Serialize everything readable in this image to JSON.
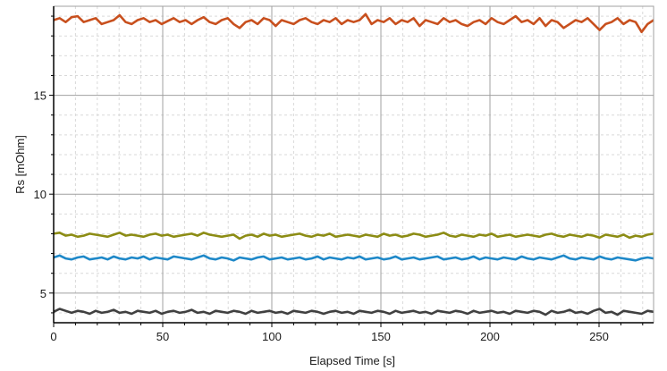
{
  "chart_data": {
    "type": "line",
    "xlabel": "Elapsed Time [s]",
    "ylabel": "Rs [mOhm]",
    "xlim": [
      0,
      275
    ],
    "ylim": [
      3.5,
      19.5
    ],
    "x_major_ticks": [
      0,
      50,
      100,
      150,
      200,
      250
    ],
    "x_minor_step": 10,
    "y_major_ticks": [
      5,
      10,
      15
    ],
    "y_minor_step": 1,
    "grid": true,
    "legend": "none",
    "series": [
      {
        "color": "#c8501e",
        "level": 18.7,
        "noise": 0.18,
        "values": [
          18.8,
          18.9,
          18.7,
          18.95,
          19.0,
          18.7,
          18.8,
          18.9,
          18.6,
          18.7,
          18.8,
          19.05,
          18.7,
          18.6,
          18.8,
          18.9,
          18.7,
          18.8,
          18.6,
          18.75,
          18.9,
          18.7,
          18.8,
          18.6,
          18.8,
          18.95,
          18.7,
          18.6,
          18.8,
          18.9,
          18.6,
          18.4,
          18.7,
          18.8,
          18.6,
          18.9,
          18.8,
          18.5,
          18.8,
          18.7,
          18.6,
          18.8,
          18.9,
          18.7,
          18.6,
          18.8,
          18.7,
          18.9,
          18.6,
          18.8,
          18.7,
          18.8,
          19.1,
          18.6,
          18.8,
          18.7,
          18.9,
          18.6,
          18.8,
          18.7,
          18.9,
          18.5,
          18.8,
          18.7,
          18.6,
          18.9,
          18.7,
          18.8,
          18.6,
          18.5,
          18.7,
          18.8,
          18.6,
          18.9,
          18.7,
          18.6,
          18.8,
          19.0,
          18.7,
          18.8,
          18.6,
          18.9,
          18.5,
          18.8,
          18.7,
          18.4,
          18.6,
          18.8,
          18.7,
          18.9,
          18.6,
          18.3,
          18.6,
          18.7,
          18.9,
          18.6,
          18.8,
          18.7,
          18.2,
          18.6,
          18.8
        ]
      },
      {
        "color": "#8c8c14",
        "level": 7.9,
        "noise": 0.08,
        "values": [
          8.0,
          8.05,
          7.9,
          7.95,
          7.85,
          7.9,
          8.0,
          7.95,
          7.9,
          7.85,
          7.95,
          8.05,
          7.9,
          7.95,
          7.9,
          7.85,
          7.95,
          8.0,
          7.9,
          7.95,
          7.85,
          7.9,
          7.95,
          8.0,
          7.9,
          8.05,
          7.95,
          7.9,
          7.85,
          7.9,
          7.95,
          7.75,
          7.9,
          7.95,
          7.85,
          8.0,
          7.9,
          7.95,
          7.85,
          7.9,
          7.95,
          8.0,
          7.9,
          7.85,
          7.95,
          7.9,
          8.0,
          7.85,
          7.9,
          7.95,
          7.9,
          7.85,
          7.95,
          7.9,
          7.85,
          8.0,
          7.9,
          7.95,
          7.85,
          7.9,
          8.0,
          7.95,
          7.85,
          7.9,
          7.95,
          8.05,
          7.9,
          7.85,
          7.95,
          7.9,
          7.85,
          7.95,
          7.9,
          8.0,
          7.85,
          7.9,
          7.95,
          7.85,
          7.9,
          7.95,
          7.9,
          7.85,
          7.95,
          8.0,
          7.9,
          7.85,
          7.95,
          7.9,
          7.85,
          7.95,
          7.9,
          7.8,
          7.95,
          7.9,
          7.85,
          7.95,
          7.8,
          7.9,
          7.85,
          7.95,
          8.0
        ]
      },
      {
        "color": "#1e88c8",
        "level": 6.75,
        "noise": 0.08,
        "values": [
          6.8,
          6.9,
          6.75,
          6.7,
          6.8,
          6.85,
          6.7,
          6.75,
          6.8,
          6.7,
          6.85,
          6.75,
          6.7,
          6.8,
          6.75,
          6.85,
          6.7,
          6.8,
          6.75,
          6.7,
          6.85,
          6.8,
          6.75,
          6.7,
          6.8,
          6.9,
          6.75,
          6.7,
          6.8,
          6.75,
          6.65,
          6.8,
          6.75,
          6.7,
          6.8,
          6.85,
          6.7,
          6.75,
          6.8,
          6.7,
          6.75,
          6.8,
          6.7,
          6.75,
          6.85,
          6.7,
          6.8,
          6.75,
          6.7,
          6.8,
          6.75,
          6.85,
          6.7,
          6.75,
          6.8,
          6.7,
          6.75,
          6.85,
          6.7,
          6.75,
          6.8,
          6.7,
          6.75,
          6.8,
          6.85,
          6.7,
          6.75,
          6.8,
          6.7,
          6.75,
          6.85,
          6.7,
          6.8,
          6.75,
          6.7,
          6.8,
          6.75,
          6.7,
          6.85,
          6.75,
          6.7,
          6.8,
          6.75,
          6.7,
          6.8,
          6.9,
          6.75,
          6.7,
          6.8,
          6.75,
          6.7,
          6.85,
          6.75,
          6.7,
          6.8,
          6.75,
          6.7,
          6.65,
          6.75,
          6.8,
          6.75
        ]
      },
      {
        "color": "#404040",
        "level": 4.05,
        "noise": 0.08,
        "values": [
          4.05,
          4.2,
          4.1,
          4.0,
          4.1,
          4.05,
          3.95,
          4.1,
          4.0,
          4.05,
          4.15,
          4.0,
          4.05,
          3.95,
          4.1,
          4.05,
          4.0,
          4.1,
          3.95,
          4.05,
          4.1,
          4.0,
          4.05,
          4.15,
          4.0,
          4.05,
          3.95,
          4.1,
          4.05,
          4.0,
          4.1,
          4.05,
          3.95,
          4.1,
          4.0,
          4.05,
          4.1,
          4.0,
          4.05,
          3.95,
          4.1,
          4.05,
          4.0,
          4.1,
          4.05,
          3.95,
          4.05,
          4.1,
          4.0,
          4.05,
          3.95,
          4.1,
          4.05,
          4.0,
          4.1,
          4.05,
          3.95,
          4.1,
          4.0,
          4.05,
          4.1,
          4.0,
          4.05,
          3.95,
          4.1,
          4.05,
          4.0,
          4.1,
          4.05,
          3.95,
          4.1,
          4.0,
          4.05,
          4.1,
          4.0,
          4.05,
          3.95,
          4.1,
          4.05,
          4.0,
          4.1,
          4.05,
          3.9,
          4.1,
          4.0,
          4.05,
          4.15,
          4.0,
          4.05,
          3.95,
          4.1,
          4.2,
          4.0,
          4.05,
          3.9,
          4.1,
          4.05,
          4.0,
          3.95,
          4.1,
          4.05
        ]
      }
    ]
  }
}
